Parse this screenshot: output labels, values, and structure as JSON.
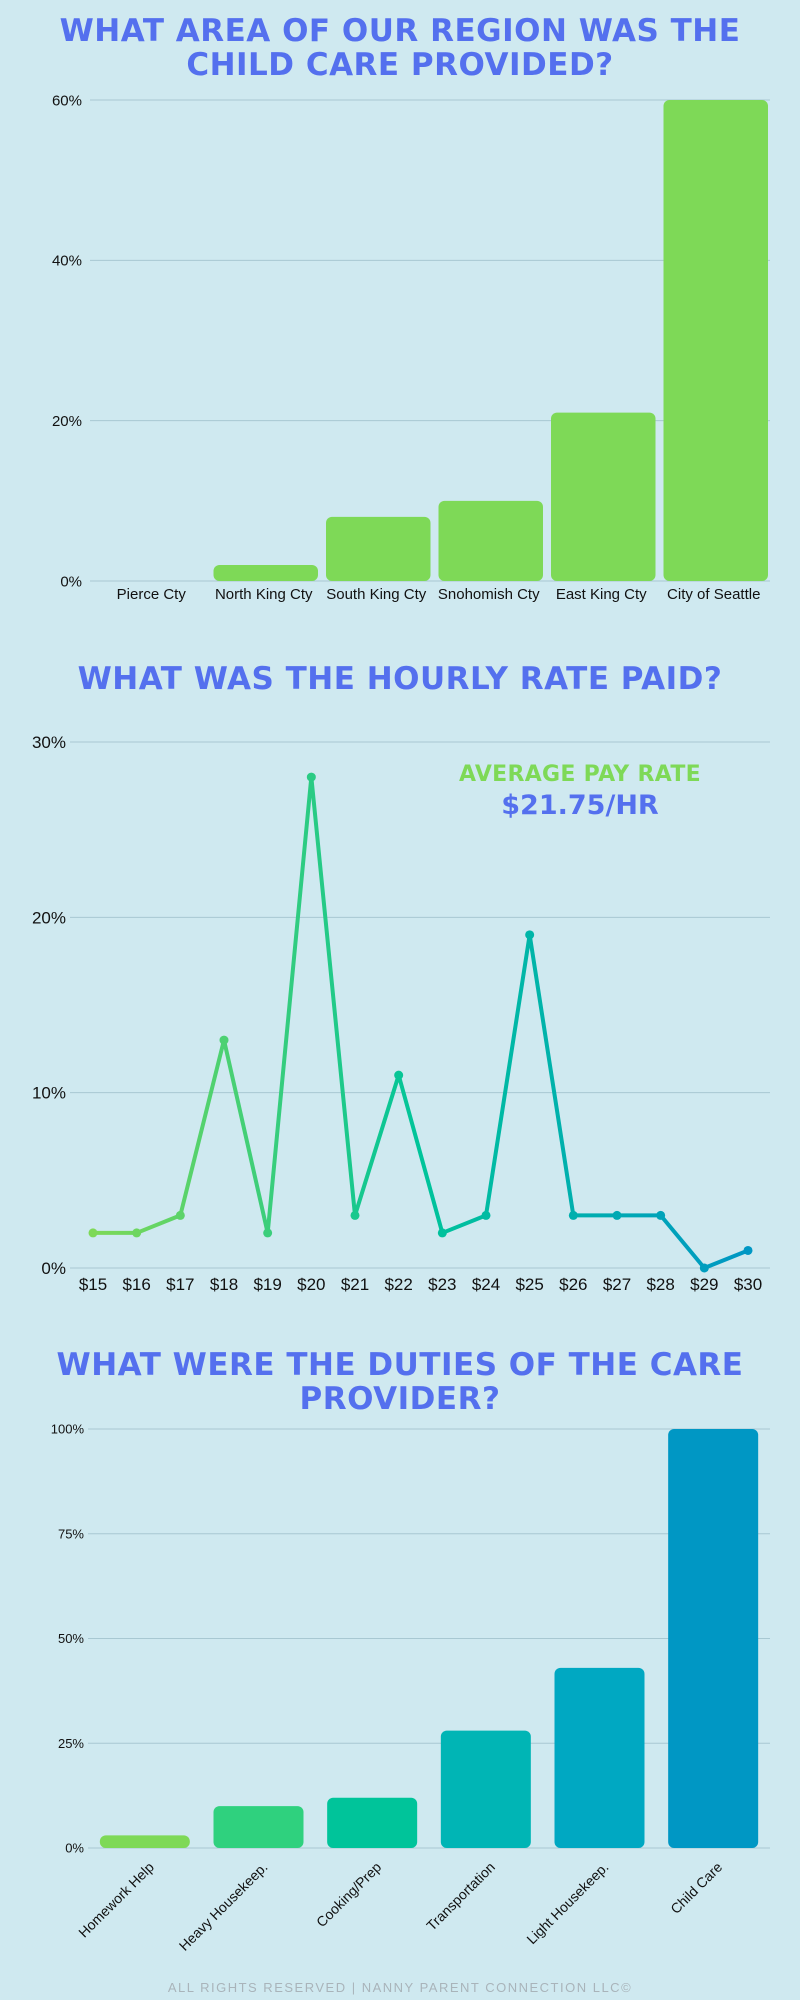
{
  "titles": {
    "region": "WHAT AREA OF OUR REGION WAS THE CHILD CARE PROVIDED?",
    "rate": "WHAT WAS THE HOURLY RATE PAID?",
    "duties": "WHAT WERE THE DUTIES OF THE CARE PROVIDER?"
  },
  "average": {
    "label": "AVERAGE PAY RATE",
    "value": "$21.75/HR"
  },
  "footer": "ALL RIGHTS RESERVED | NANNY PARENT CONNECTION LLC©",
  "chart_data": [
    {
      "type": "bar",
      "title": "WHAT AREA OF OUR REGION WAS THE CHILD CARE PROVIDED?",
      "categories": [
        "Pierce Cty",
        "North King Cty",
        "South King Cty",
        "Snohomish Cty",
        "East King Cty",
        "City of Seattle"
      ],
      "values": [
        0,
        2,
        8,
        10,
        21,
        60
      ],
      "ylim": [
        0,
        60
      ],
      "yticks": [
        "0%",
        "20%",
        "40%",
        "60%"
      ],
      "grid": true,
      "colors": [
        "#7ed957"
      ]
    },
    {
      "type": "line",
      "title": "WHAT WAS THE HOURLY RATE PAID?",
      "categories": [
        "$15",
        "$16",
        "$17",
        "$18",
        "$19",
        "$20",
        "$21",
        "$22",
        "$23",
        "$24",
        "$25",
        "$26",
        "$27",
        "$28",
        "$29",
        "$30"
      ],
      "values": [
        2,
        2,
        3,
        13,
        2,
        28,
        3,
        11,
        2,
        3,
        19,
        3,
        3,
        3,
        0,
        1
      ],
      "ylim": [
        0,
        30
      ],
      "yticks": [
        "0%",
        "10%",
        "20%",
        "30%"
      ],
      "grid": true,
      "colors": [
        "#7ed957",
        "#00c49a",
        "#0097c4"
      ]
    },
    {
      "type": "bar",
      "title": "WHAT WERE THE DUTIES OF THE CARE PROVIDER?",
      "categories": [
        "Homework Help",
        "Heavy Housekeep.",
        "Cooking/Prep",
        "Transportation",
        "Light Housekeep.",
        "Child Care"
      ],
      "values": [
        3,
        10,
        12,
        28,
        43,
        100
      ],
      "ylim": [
        0,
        100
      ],
      "yticks": [
        "0%",
        "25%",
        "50%",
        "75%",
        "100%"
      ],
      "grid": true,
      "colors": [
        "#7ed957",
        "#2fd17e",
        "#00c49a",
        "#00b5b5",
        "#00a8c2",
        "#0097c4"
      ]
    }
  ]
}
